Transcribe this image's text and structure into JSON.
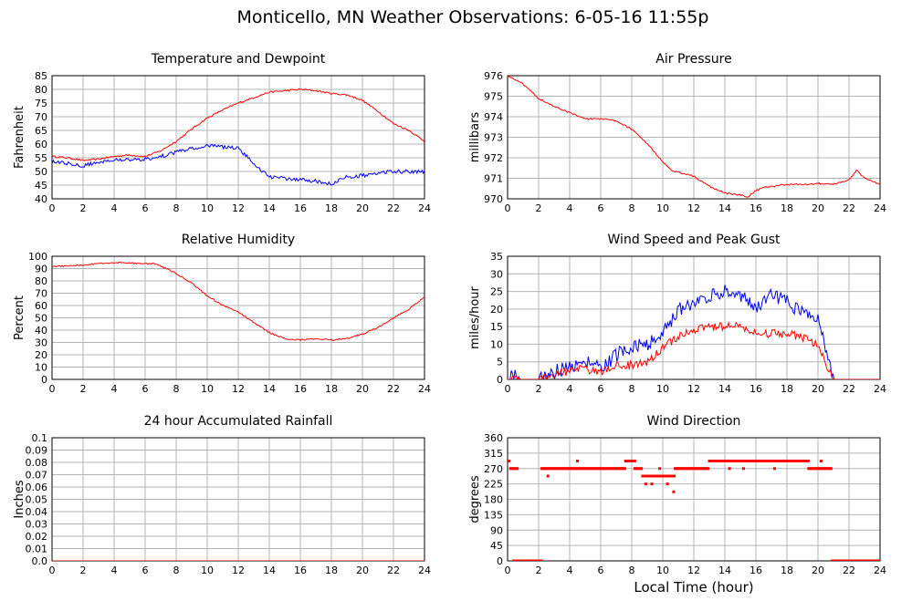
{
  "title": "Monticello, MN Weather Observations: 6-05-16 11:55p",
  "x_axis_label": "Local Time (hour)",
  "colors": {
    "red": "#ff0000",
    "blue": "#0000ff",
    "grid": "#b4b4b4"
  },
  "chart_data": [
    {
      "type": "line",
      "title": "Temperature and Dewpoint",
      "ylabel": "Fahrenheit",
      "xlim": [
        0,
        24
      ],
      "ylim": [
        40,
        85
      ],
      "xticks": [
        0,
        2,
        4,
        6,
        8,
        10,
        12,
        14,
        16,
        18,
        20,
        22,
        24
      ],
      "yticks": [
        40,
        45,
        50,
        55,
        60,
        65,
        70,
        75,
        80,
        85
      ],
      "series": [
        {
          "color": "#ff0000",
          "noise": 0.3,
          "x": [
            0,
            1,
            2,
            3,
            4,
            5,
            6,
            7,
            8,
            9,
            10,
            11,
            12,
            13,
            14,
            15,
            16,
            17,
            18,
            19,
            20,
            21,
            22,
            23,
            24
          ],
          "y": [
            55.5,
            55,
            54,
            54.5,
            55.5,
            56,
            55.5,
            57.5,
            61,
            65.5,
            69.5,
            72.5,
            75,
            77,
            79,
            79.5,
            80,
            79.5,
            78.5,
            78,
            76,
            72,
            67.5,
            65,
            61
          ]
        },
        {
          "color": "#0000ff",
          "noise": 0.7,
          "x": [
            0,
            1,
            2,
            3,
            4,
            5,
            6,
            7,
            8,
            9,
            10,
            11,
            12,
            13,
            14,
            15,
            16,
            17,
            18,
            19,
            20,
            21,
            22,
            23,
            24
          ],
          "y": [
            53.5,
            53,
            52,
            53.5,
            54.5,
            54,
            54.5,
            55.5,
            57,
            58.5,
            59.5,
            59,
            58.5,
            53,
            48,
            47.5,
            47,
            46.5,
            45.5,
            48,
            48.5,
            49.5,
            50,
            50,
            50
          ]
        }
      ]
    },
    {
      "type": "line",
      "title": "Air Pressure",
      "ylabel": "millibars",
      "xlim": [
        0,
        24
      ],
      "ylim": [
        970,
        976
      ],
      "xticks": [
        0,
        2,
        4,
        6,
        8,
        10,
        12,
        14,
        16,
        18,
        20,
        22,
        24
      ],
      "yticks": [
        970,
        971,
        972,
        973,
        974,
        975,
        976
      ],
      "series": [
        {
          "color": "#ff0000",
          "noise": 0.04,
          "x": [
            0,
            1,
            2,
            3,
            4,
            5,
            6,
            7,
            8,
            9,
            10,
            10.5,
            11,
            12,
            13,
            14,
            14.5,
            15,
            15.5,
            16,
            16.5,
            17,
            18,
            19,
            20,
            21,
            22,
            22.5,
            23,
            24
          ],
          "y": [
            976,
            975.6,
            974.9,
            974.5,
            974.2,
            973.9,
            973.9,
            973.8,
            973.4,
            972.7,
            971.8,
            971.4,
            971.3,
            971.1,
            970.6,
            970.3,
            970.2,
            970.2,
            970.1,
            970.4,
            970.55,
            970.6,
            970.7,
            970.7,
            970.75,
            970.7,
            970.9,
            971.4,
            971.0,
            970.7
          ]
        }
      ]
    },
    {
      "type": "line",
      "title": "Relative Humidity",
      "ylabel": "Percent",
      "xlim": [
        0,
        24
      ],
      "ylim": [
        0,
        100
      ],
      "xticks": [
        0,
        2,
        4,
        6,
        8,
        10,
        12,
        14,
        16,
        18,
        20,
        22,
        24
      ],
      "yticks": [
        0,
        10,
        20,
        30,
        40,
        50,
        60,
        70,
        80,
        90,
        100
      ],
      "series": [
        {
          "color": "#ff0000",
          "noise": 0.6,
          "x": [
            0,
            1,
            2,
            3,
            4,
            5,
            6,
            6.5,
            7,
            8,
            9,
            10,
            11,
            12,
            13,
            14,
            15,
            16,
            17,
            18,
            19,
            20,
            21,
            22,
            23,
            24
          ],
          "y": [
            92,
            92,
            93,
            94,
            95,
            94.5,
            94,
            94,
            92,
            86,
            78,
            68,
            60,
            55,
            46,
            38,
            33,
            32,
            33,
            32,
            33,
            37,
            42,
            50,
            57,
            67
          ]
        }
      ]
    },
    {
      "type": "line",
      "title": "Wind Speed and Peak Gust",
      "ylabel": "miles/hour",
      "xlim": [
        0,
        24
      ],
      "ylim": [
        0,
        35
      ],
      "xticks": [
        0,
        2,
        4,
        6,
        8,
        10,
        12,
        14,
        16,
        18,
        20,
        22,
        24
      ],
      "yticks": [
        0,
        5,
        10,
        15,
        20,
        25,
        30,
        35
      ],
      "series": [
        {
          "color": "#0000ff",
          "noise": 2.0,
          "x": [
            0,
            0.4,
            0.8,
            2,
            2.5,
            3,
            4,
            5,
            6,
            7,
            8,
            9,
            10,
            11,
            12,
            13,
            14,
            15,
            16,
            17,
            18,
            19,
            20,
            20.7,
            21,
            22,
            24
          ],
          "y": [
            0,
            2,
            0,
            0,
            1,
            2,
            4,
            5,
            3,
            7,
            9,
            10,
            13,
            20,
            22,
            24,
            25,
            24,
            20,
            24,
            22,
            19,
            17,
            5,
            0,
            0,
            0
          ]
        },
        {
          "color": "#ff0000",
          "noise": 1.2,
          "x": [
            0,
            0.4,
            0.8,
            2,
            2.5,
            3,
            4,
            5,
            6,
            7,
            8,
            9,
            10,
            11,
            12,
            13,
            14,
            15,
            16,
            17,
            18,
            19,
            20,
            20.7,
            21,
            22,
            24
          ],
          "y": [
            0,
            0.5,
            0,
            0,
            0.5,
            1,
            2.5,
            3,
            2,
            4,
            4,
            5,
            9,
            12,
            14,
            15,
            15,
            15,
            13,
            13,
            13,
            12,
            10,
            3,
            0,
            0,
            0
          ]
        }
      ]
    },
    {
      "type": "line",
      "title": "24 hour Accumulated Rainfall",
      "ylabel": "Inches",
      "xlim": [
        0,
        24
      ],
      "ylim": [
        0,
        0.1
      ],
      "xticks": [
        0,
        2,
        4,
        6,
        8,
        10,
        12,
        14,
        16,
        18,
        20,
        22,
        24
      ],
      "yticks": [
        0.0,
        0.01,
        0.02,
        0.03,
        0.04,
        0.05,
        0.06,
        0.07,
        0.08,
        0.09,
        0.1
      ],
      "ytick_labels": [
        "0.0",
        "0.01",
        "0.02",
        "0.03",
        "0.04",
        "0.05",
        "0.06",
        "0.07",
        "0.08",
        "0.09",
        "0.1"
      ],
      "series": [
        {
          "color": "#ff0000",
          "noise": 0,
          "x": [
            0,
            24
          ],
          "y": [
            0,
            0
          ]
        }
      ]
    },
    {
      "type": "scatter",
      "title": "Wind Direction",
      "ylabel": "degrees",
      "xlim": [
        0,
        24
      ],
      "ylim": [
        0,
        360
      ],
      "xticks": [
        0,
        2,
        4,
        6,
        8,
        10,
        12,
        14,
        16,
        18,
        20,
        22,
        24
      ],
      "yticks": [
        0,
        45,
        90,
        135,
        180,
        225,
        270,
        315,
        360
      ],
      "segments": [
        {
          "x0": 0,
          "x1": 0.15,
          "y": 292
        },
        {
          "x0": 0.2,
          "x1": 0.7,
          "y": 270
        },
        {
          "x0": 0.4,
          "x1": 2.2,
          "y": 0
        },
        {
          "x0": 2.2,
          "x1": 7.6,
          "y": 270
        },
        {
          "x0": 7.6,
          "x1": 8.2,
          "y": 292
        },
        {
          "x0": 8.2,
          "x1": 8.7,
          "y": 270
        },
        {
          "x0": 8.7,
          "x1": 10.8,
          "y": 248
        },
        {
          "x0": 10.8,
          "x1": 13.0,
          "y": 270
        },
        {
          "x0": 13.0,
          "x1": 19.4,
          "y": 292
        },
        {
          "x0": 19.4,
          "x1": 20.9,
          "y": 270
        },
        {
          "x0": 20.9,
          "x1": 24.0,
          "y": 0
        }
      ],
      "points": [
        {
          "x": 2.6,
          "y": 248
        },
        {
          "x": 4.5,
          "y": 292
        },
        {
          "x": 8.9,
          "y": 225
        },
        {
          "x": 9.3,
          "y": 225
        },
        {
          "x": 10.3,
          "y": 225
        },
        {
          "x": 10.7,
          "y": 202
        },
        {
          "x": 14.3,
          "y": 270
        },
        {
          "x": 15.2,
          "y": 270
        },
        {
          "x": 17.2,
          "y": 270
        },
        {
          "x": 18.8,
          "y": 292
        },
        {
          "x": 20.2,
          "y": 292
        },
        {
          "x": 9.8,
          "y": 270
        }
      ]
    }
  ]
}
